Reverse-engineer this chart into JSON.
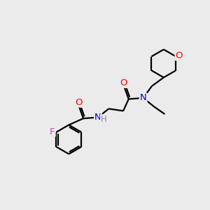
{
  "background_color": "#ebebeb",
  "bond_color": "#000000",
  "atom_colors": {
    "O": "#ff0000",
    "N": "#0000cc",
    "F": "#cc44cc",
    "H": "#888888",
    "C": "#000000"
  },
  "figsize": [
    3.0,
    3.0
  ],
  "dpi": 100,
  "lw": 1.6,
  "dbl_sep": 3.0,
  "fontsize": 9.5
}
